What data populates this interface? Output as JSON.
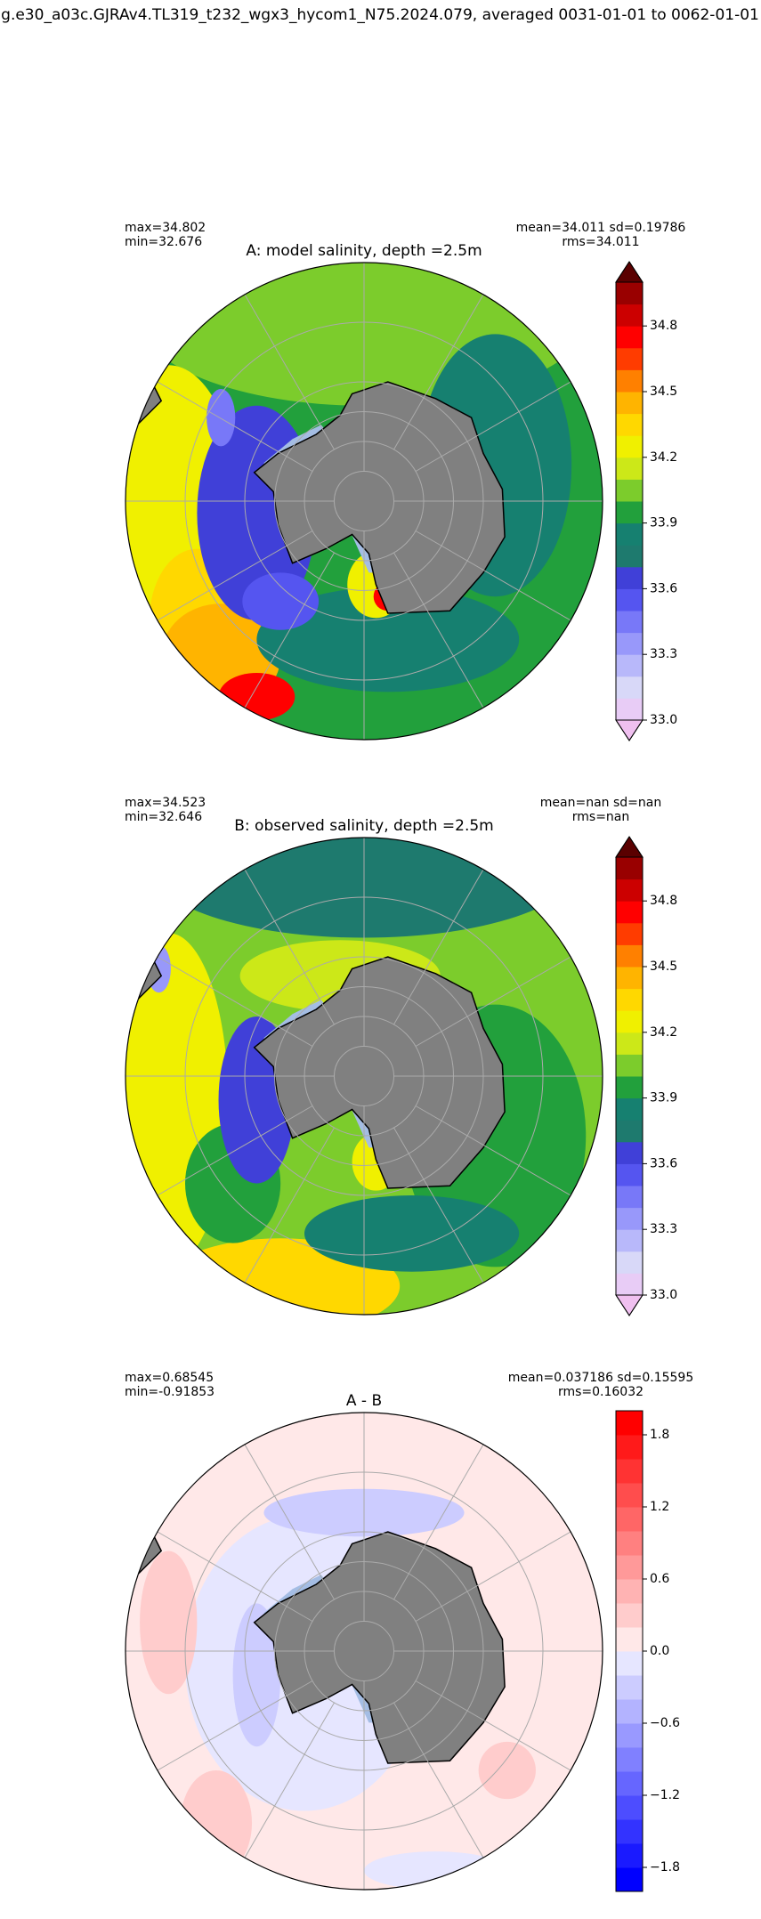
{
  "title": "g.e30_a03c.GJRAv4.TL319_t232_wgx3_hycom1_N75.2024.079, averaged 0031-01-01 to 0062-01-01",
  "chart_data": [
    {
      "type": "map",
      "title": "A: model salinity, depth =2.5m",
      "stats_left": [
        "max=34.802",
        "min=32.676"
      ],
      "stats_right": [
        "mean=34.011 sd=0.19786",
        "rms=34.011"
      ],
      "colorbar": {
        "ylim": [
          33,
          35
        ],
        "yticks": [
          {
            "value": 33,
            "label": "33.0"
          },
          33.3,
          33.6,
          33.9,
          34.2,
          34.5,
          34.8
        ],
        "levels": [
          33,
          33.1,
          33.2,
          33.3,
          33.4,
          33.5,
          33.6,
          33.7,
          33.8,
          33.9,
          34,
          34.1,
          34.2,
          34.3,
          34.4,
          34.5,
          34.6,
          34.7,
          34.8,
          34.9,
          35
        ],
        "colors": [
          "#e8ccf6",
          "#d8d8f8",
          "#b8b8fa",
          "#9898fa",
          "#7878f8",
          "#5555f0",
          "#4040d8",
          "#1e7a6e",
          "#168070",
          "#22a03c",
          "#7ccc2c",
          "#cce818",
          "#f0f000",
          "#ffd800",
          "#ffb400",
          "#ff8000",
          "#ff3c00",
          "#ff0000",
          "#cc0000",
          "#990000"
        ],
        "extend": "both",
        "under_color": "#f0c0f0",
        "over_color": "#5a0000"
      }
    },
    {
      "type": "map",
      "title": "B: observed salinity, depth =2.5m",
      "stats_left": [
        "max=34.523",
        "min=32.646"
      ],
      "stats_right": [
        "mean=nan sd=nan",
        "rms=nan"
      ],
      "colorbar": {
        "ylim": [
          33,
          35
        ],
        "yticks": [
          {
            "value": 33,
            "label": "33.0"
          },
          33.3,
          33.6,
          33.9,
          34.2,
          34.5,
          34.8
        ],
        "levels": [
          33,
          33.1,
          33.2,
          33.3,
          33.4,
          33.5,
          33.6,
          33.7,
          33.8,
          33.9,
          34,
          34.1,
          34.2,
          34.3,
          34.4,
          34.5,
          34.6,
          34.7,
          34.8,
          34.9,
          35
        ],
        "colors": [
          "#e8ccf6",
          "#d8d8f8",
          "#b8b8fa",
          "#9898fa",
          "#7878f8",
          "#5555f0",
          "#4040d8",
          "#1e7a6e",
          "#168070",
          "#22a03c",
          "#7ccc2c",
          "#cce818",
          "#f0f000",
          "#ffd800",
          "#ffb400",
          "#ff8000",
          "#ff3c00",
          "#ff0000",
          "#cc0000",
          "#990000"
        ],
        "extend": "both",
        "under_color": "#f0c0f0",
        "over_color": "#5a0000"
      }
    },
    {
      "type": "map",
      "title": "A - B",
      "stats_left": [
        "max=0.68545",
        "min=-0.91853"
      ],
      "stats_right": [
        "mean=0.037186 sd=0.15595",
        "rms=0.16032"
      ],
      "colorbar": {
        "ylim": [
          -2,
          2
        ],
        "yticks": [
          {
            "value": -1.8,
            "label": "−1.8"
          },
          {
            "value": -1.2,
            "label": "−1.2"
          },
          {
            "value": -0.6,
            "label": "−0.6"
          },
          {
            "value": 0,
            "label": "0.0"
          },
          0.6,
          1.2,
          1.8
        ],
        "levels": [
          -2,
          -1.8,
          -1.6,
          -1.4,
          -1.2,
          -1,
          -0.8,
          -0.6,
          -0.4,
          -0.2,
          0,
          0.2,
          0.4,
          0.6,
          0.8,
          1,
          1.2,
          1.4,
          1.6,
          1.8,
          2
        ],
        "colors": [
          "#0000ff",
          "#1a1aff",
          "#3333ff",
          "#4d4dff",
          "#6666ff",
          "#8080ff",
          "#9999ff",
          "#b3b3ff",
          "#ccccff",
          "#e6e6ff",
          "#ffe8e8",
          "#ffcccc",
          "#ffb3b3",
          "#ff9999",
          "#ff8080",
          "#ff6666",
          "#ff4d4d",
          "#ff3333",
          "#ff1a1a",
          "#ff0000"
        ],
        "extend": "neither"
      }
    }
  ]
}
